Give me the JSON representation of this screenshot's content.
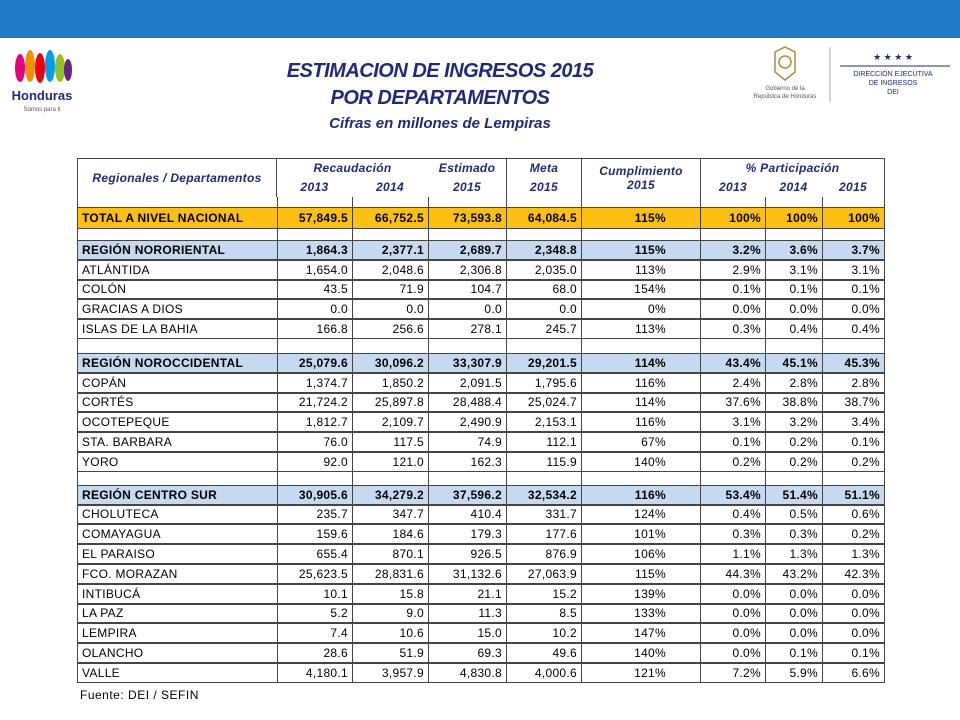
{
  "header": {
    "title_lines": [
      "ESTIMACION DE INGRESOS 2015",
      "POR DEPARTAMENTOS"
    ],
    "subtitle": "Cifras en  millones de Lempiras",
    "logo_left": {
      "name": "Honduras",
      "tagline": "Somos para ti"
    },
    "logo_gov": [
      "Gobierno de la",
      "República de Honduras"
    ],
    "logo_dei": [
      "DIRECCIÓN EJECUTIVA",
      "DE INGRESOS",
      "DEI"
    ]
  },
  "table": {
    "head": {
      "first": "Regionales / Departamentos",
      "recaudacion": "Recaudación",
      "estimado": "Estimado",
      "meta": "Meta",
      "cumplimiento": "Cumplimiento 2015",
      "participacion": "% Participación",
      "years": [
        "2013",
        "2014",
        "2015",
        "2015",
        "2013",
        "2014",
        "2015"
      ]
    },
    "total": [
      "TOTAL A NIVEL NACIONAL",
      "57,849.5",
      "66,752.5",
      "73,593.8",
      "64,084.5",
      "115%",
      "100%",
      "100%",
      "100%"
    ],
    "regions": [
      {
        "summary": [
          "REGIÓN NORORIENTAL",
          "1,864.3",
          "2,377.1",
          "2,689.7",
          "2,348.8",
          "115%",
          "3.2%",
          "3.6%",
          "3.7%"
        ],
        "departments": [
          [
            "ATLÁNTIDA",
            "1,654.0",
            "2,048.6",
            "2,306.8",
            "2,035.0",
            "113%",
            "2.9%",
            "3.1%",
            "3.1%"
          ],
          [
            "COLÓN",
            "43.5",
            "71.9",
            "104.7",
            "68.0",
            "154%",
            "0.1%",
            "0.1%",
            "0.1%"
          ],
          [
            "GRACIAS A DIOS",
            "0.0",
            "0.0",
            "0.0",
            "0.0",
            "0%",
            "0.0%",
            "0.0%",
            "0.0%"
          ],
          [
            "ISLAS DE LA BAHIA",
            "166.8",
            "256.6",
            "278.1",
            "245.7",
            "113%",
            "0.3%",
            "0.4%",
            "0.4%"
          ]
        ]
      },
      {
        "summary": [
          "REGIÓN NOROCCIDENTAL",
          "25,079.6",
          "30,096.2",
          "33,307.9",
          "29,201.5",
          "114%",
          "43.4%",
          "45.1%",
          "45.3%"
        ],
        "departments": [
          [
            "COPÁN",
            "1,374.7",
            "1,850.2",
            "2,091.5",
            "1,795.6",
            "116%",
            "2.4%",
            "2.8%",
            "2.8%"
          ],
          [
            "CORTÉS",
            "21,724.2",
            "25,897.8",
            "28,488.4",
            "25,024.7",
            "114%",
            "37.6%",
            "38.8%",
            "38.7%"
          ],
          [
            "OCOTEPEQUE",
            "1,812.7",
            "2,109.7",
            "2,490.9",
            "2,153.1",
            "116%",
            "3.1%",
            "3.2%",
            "3.4%"
          ],
          [
            "STA. BARBARA",
            "76.0",
            "117.5",
            "74.9",
            "112.1",
            "67%",
            "0.1%",
            "0.2%",
            "0.1%"
          ],
          [
            "YORO",
            "92.0",
            "121.0",
            "162.3",
            "115.9",
            "140%",
            "0.2%",
            "0.2%",
            "0.2%"
          ]
        ]
      },
      {
        "summary": [
          "REGIÓN CENTRO SUR",
          "30,905.6",
          "34,279.2",
          "37,596.2",
          "32,534.2",
          "116%",
          "53.4%",
          "51.4%",
          "51.1%"
        ],
        "departments": [
          [
            "CHOLUTECA",
            "235.7",
            "347.7",
            "410.4",
            "331.7",
            "124%",
            "0.4%",
            "0.5%",
            "0.6%"
          ],
          [
            "COMAYAGUA",
            "159.6",
            "184.6",
            "179.3",
            "177.6",
            "101%",
            "0.3%",
            "0.3%",
            "0.2%"
          ],
          [
            "EL PARAISO",
            "655.4",
            "870.1",
            "926.5",
            "876.9",
            "106%",
            "1.1%",
            "1.3%",
            "1.3%"
          ],
          [
            "FCO. MORAZAN",
            "25,623.5",
            "28,831.6",
            "31,132.6",
            "27,063.9",
            "115%",
            "44.3%",
            "43.2%",
            "42.3%"
          ],
          [
            "INTIBUCÁ",
            "10.1",
            "15.8",
            "21.1",
            "15.2",
            "139%",
            "0.0%",
            "0.0%",
            "0.0%"
          ],
          [
            "LA PAZ",
            "5.2",
            "9.0",
            "11.3",
            "8.5",
            "133%",
            "0.0%",
            "0.0%",
            "0.0%"
          ],
          [
            "LEMPIRA",
            "7.4",
            "10.6",
            "15.0",
            "10.2",
            "147%",
            "0.0%",
            "0.0%",
            "0.0%"
          ],
          [
            "OLANCHO",
            "28.6",
            "51.9",
            "69.3",
            "49.6",
            "140%",
            "0.0%",
            "0.1%",
            "0.1%"
          ],
          [
            "VALLE",
            "4,180.1",
            "3,957.9",
            "4,830.8",
            "4,000.6",
            "121%",
            "7.2%",
            "5.9%",
            "6.6%"
          ]
        ]
      }
    ]
  },
  "footer": "Fuente: DEI / SEFIN"
}
